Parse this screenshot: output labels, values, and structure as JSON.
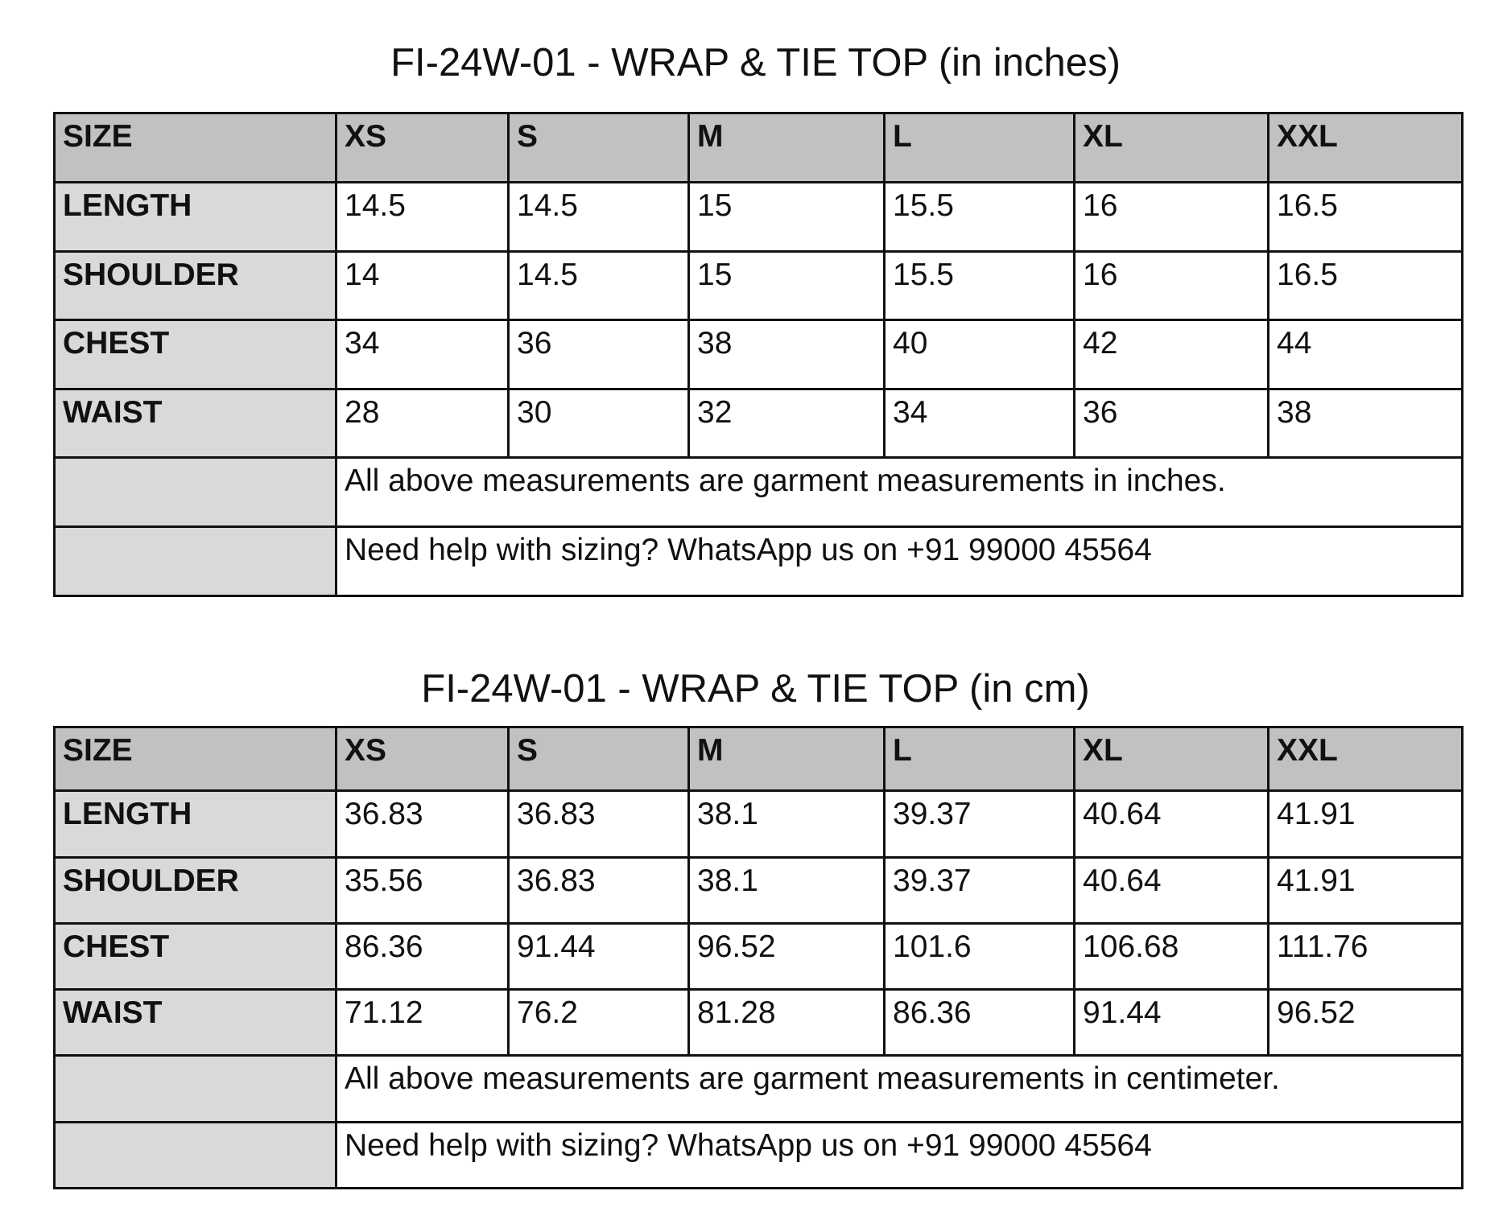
{
  "tables": [
    {
      "title": "FI-24W-01 - WRAP & TIE TOP (in inches)",
      "header": [
        "SIZE",
        "XS",
        "S",
        "M",
        "L",
        "XL",
        "XXL"
      ],
      "rows": [
        {
          "label": "LENGTH",
          "values": [
            "14.5",
            "14.5",
            "15",
            "15.5",
            "16",
            "16.5"
          ]
        },
        {
          "label": "SHOULDER",
          "values": [
            "14",
            "14.5",
            "15",
            "15.5",
            "16",
            "16.5"
          ]
        },
        {
          "label": "CHEST",
          "values": [
            "34",
            "36",
            "38",
            "40",
            "42",
            "44"
          ]
        },
        {
          "label": "WAIST",
          "values": [
            "28",
            "30",
            "32",
            "34",
            "36",
            "38"
          ]
        }
      ],
      "notes": [
        "All above measurements are garment measurements in inches.",
        "Need help with sizing? WhatsApp us on +91 99000 45564"
      ]
    },
    {
      "title": "FI-24W-01 - WRAP & TIE TOP (in cm)",
      "header": [
        "SIZE",
        "XS",
        "S",
        "M",
        "L",
        "XL",
        "XXL"
      ],
      "rows": [
        {
          "label": "LENGTH",
          "values": [
            "36.83",
            "36.83",
            "38.1",
            "39.37",
            "40.64",
            "41.91"
          ]
        },
        {
          "label": "SHOULDER",
          "values": [
            "35.56",
            "36.83",
            "38.1",
            "39.37",
            "40.64",
            "41.91"
          ]
        },
        {
          "label": "CHEST",
          "values": [
            "86.36",
            "91.44",
            "96.52",
            "101.6",
            "106.68",
            "111.76"
          ]
        },
        {
          "label": "WAIST",
          "values": [
            "71.12",
            "76.2",
            "81.28",
            "86.36",
            "91.44",
            "96.52"
          ]
        }
      ],
      "notes": [
        "All above measurements are garment measurements in centimeter.",
        "Need help with sizing? WhatsApp us on +91 99000 45564"
      ]
    }
  ],
  "colors": {
    "header_bg": "#c0c1c0",
    "label_bg": "#d9d9d9",
    "border": "#111111"
  }
}
